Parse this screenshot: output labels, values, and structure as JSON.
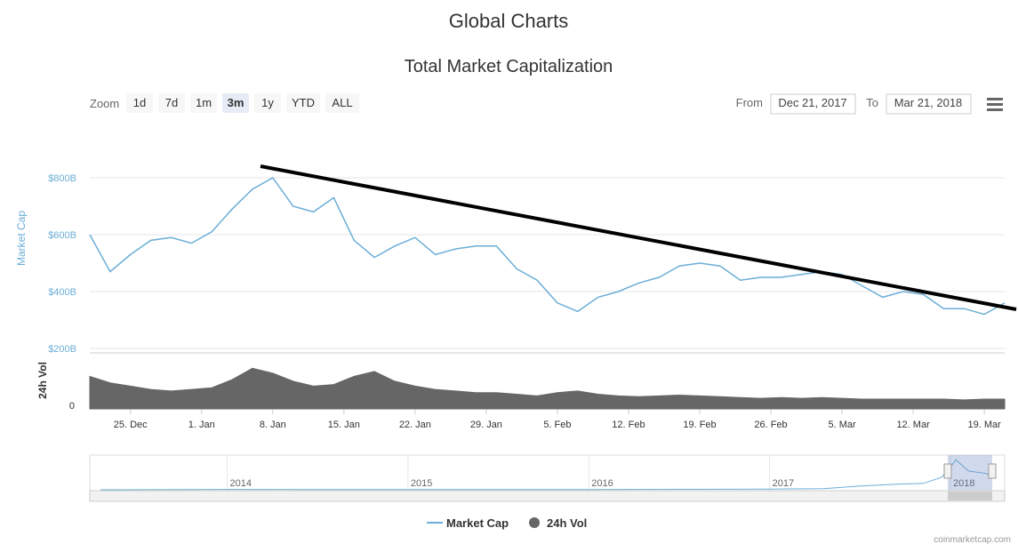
{
  "page_title": "Global Charts",
  "chart_data": {
    "type": "line",
    "title": "Total Market Capitalization",
    "zoom_label": "Zoom",
    "zoom_buttons": [
      "1d",
      "7d",
      "1m",
      "3m",
      "1y",
      "YTD",
      "ALL"
    ],
    "zoom_selected": "3m",
    "from_label": "From",
    "from_value": "Dec 21, 2017",
    "to_label": "To",
    "to_value": "Mar 21, 2018",
    "credit": "coinmarketcap.com",
    "x": [
      "2017-12-21",
      "2017-12-23",
      "2017-12-25",
      "2017-12-27",
      "2017-12-29",
      "2017-12-31",
      "2018-01-02",
      "2018-01-04",
      "2018-01-06",
      "2018-01-08",
      "2018-01-10",
      "2018-01-12",
      "2018-01-14",
      "2018-01-16",
      "2018-01-18",
      "2018-01-20",
      "2018-01-22",
      "2018-01-24",
      "2018-01-26",
      "2018-01-28",
      "2018-01-30",
      "2018-02-01",
      "2018-02-03",
      "2018-02-05",
      "2018-02-07",
      "2018-02-09",
      "2018-02-11",
      "2018-02-13",
      "2018-02-15",
      "2018-02-17",
      "2018-02-19",
      "2018-02-21",
      "2018-02-23",
      "2018-02-25",
      "2018-02-27",
      "2018-03-01",
      "2018-03-03",
      "2018-03-05",
      "2018-03-07",
      "2018-03-09",
      "2018-03-11",
      "2018-03-13",
      "2018-03-15",
      "2018-03-17",
      "2018-03-19",
      "2018-03-21"
    ],
    "xlim": [
      "2017-12-21",
      "2018-03-21"
    ],
    "xticks": [
      {
        "value": "2017-12-25",
        "label": "25. Dec"
      },
      {
        "value": "2018-01-01",
        "label": "1. Jan"
      },
      {
        "value": "2018-01-08",
        "label": "8. Jan"
      },
      {
        "value": "2018-01-15",
        "label": "15. Jan"
      },
      {
        "value": "2018-01-22",
        "label": "22. Jan"
      },
      {
        "value": "2018-01-29",
        "label": "29. Jan"
      },
      {
        "value": "2018-02-05",
        "label": "5. Feb"
      },
      {
        "value": "2018-02-12",
        "label": "12. Feb"
      },
      {
        "value": "2018-02-19",
        "label": "19. Feb"
      },
      {
        "value": "2018-02-26",
        "label": "26. Feb"
      },
      {
        "value": "2018-03-05",
        "label": "5. Mar"
      },
      {
        "value": "2018-03-12",
        "label": "12. Mar"
      },
      {
        "value": "2018-03-19",
        "label": "19. Mar"
      }
    ],
    "ylabel": "Market Cap",
    "ylim": [
      200,
      1000
    ],
    "yticks": [
      {
        "value": 200,
        "label": "$200B"
      },
      {
        "value": 400,
        "label": "$400B"
      },
      {
        "value": 600,
        "label": "$600B"
      },
      {
        "value": 800,
        "label": "$800B"
      }
    ],
    "y2label": "24h Vol",
    "y2lim": [
      0,
      70
    ],
    "y2ticks": [
      0
    ],
    "grid": true,
    "series": [
      {
        "name": "Market Cap",
        "color": "#6baed6",
        "values": [
          600,
          470,
          530,
          580,
          590,
          570,
          610,
          690,
          760,
          800,
          700,
          680,
          730,
          580,
          520,
          560,
          590,
          530,
          550,
          560,
          560,
          480,
          440,
          360,
          330,
          380,
          400,
          430,
          450,
          490,
          500,
          490,
          440,
          450,
          450,
          460,
          470,
          460,
          420,
          380,
          400,
          390,
          340,
          340,
          320,
          360
        ]
      },
      {
        "name": "24h Vol",
        "color": "#666666",
        "axis": "y2",
        "values": [
          40,
          32,
          28,
          24,
          22,
          24,
          26,
          36,
          50,
          44,
          34,
          28,
          30,
          40,
          46,
          34,
          28,
          24,
          22,
          20,
          20,
          18,
          16,
          20,
          22,
          18,
          16,
          15,
          16,
          17,
          16,
          15,
          14,
          13,
          14,
          13,
          14,
          13,
          12,
          12,
          12,
          12,
          12,
          11,
          12,
          12
        ]
      }
    ],
    "navigator": {
      "xlim": [
        2013.24,
        2018.3
      ],
      "xticks": [
        2014,
        2015,
        2016,
        2017,
        2018
      ],
      "ylim": [
        0,
        900
      ],
      "x": [
        2013.3,
        2014,
        2014.5,
        2015,
        2015.5,
        2016,
        2016.5,
        2017,
        2017.3,
        2017.5,
        2017.7,
        2017.85,
        2017.95,
        2018.0,
        2018.03,
        2018.1,
        2018.2,
        2018.22
      ],
      "values": [
        1,
        10,
        8,
        5,
        4,
        7,
        12,
        18,
        30,
        100,
        150,
        170,
        330,
        600,
        800,
        500,
        430,
        360
      ]
    },
    "legend": "bottom"
  }
}
